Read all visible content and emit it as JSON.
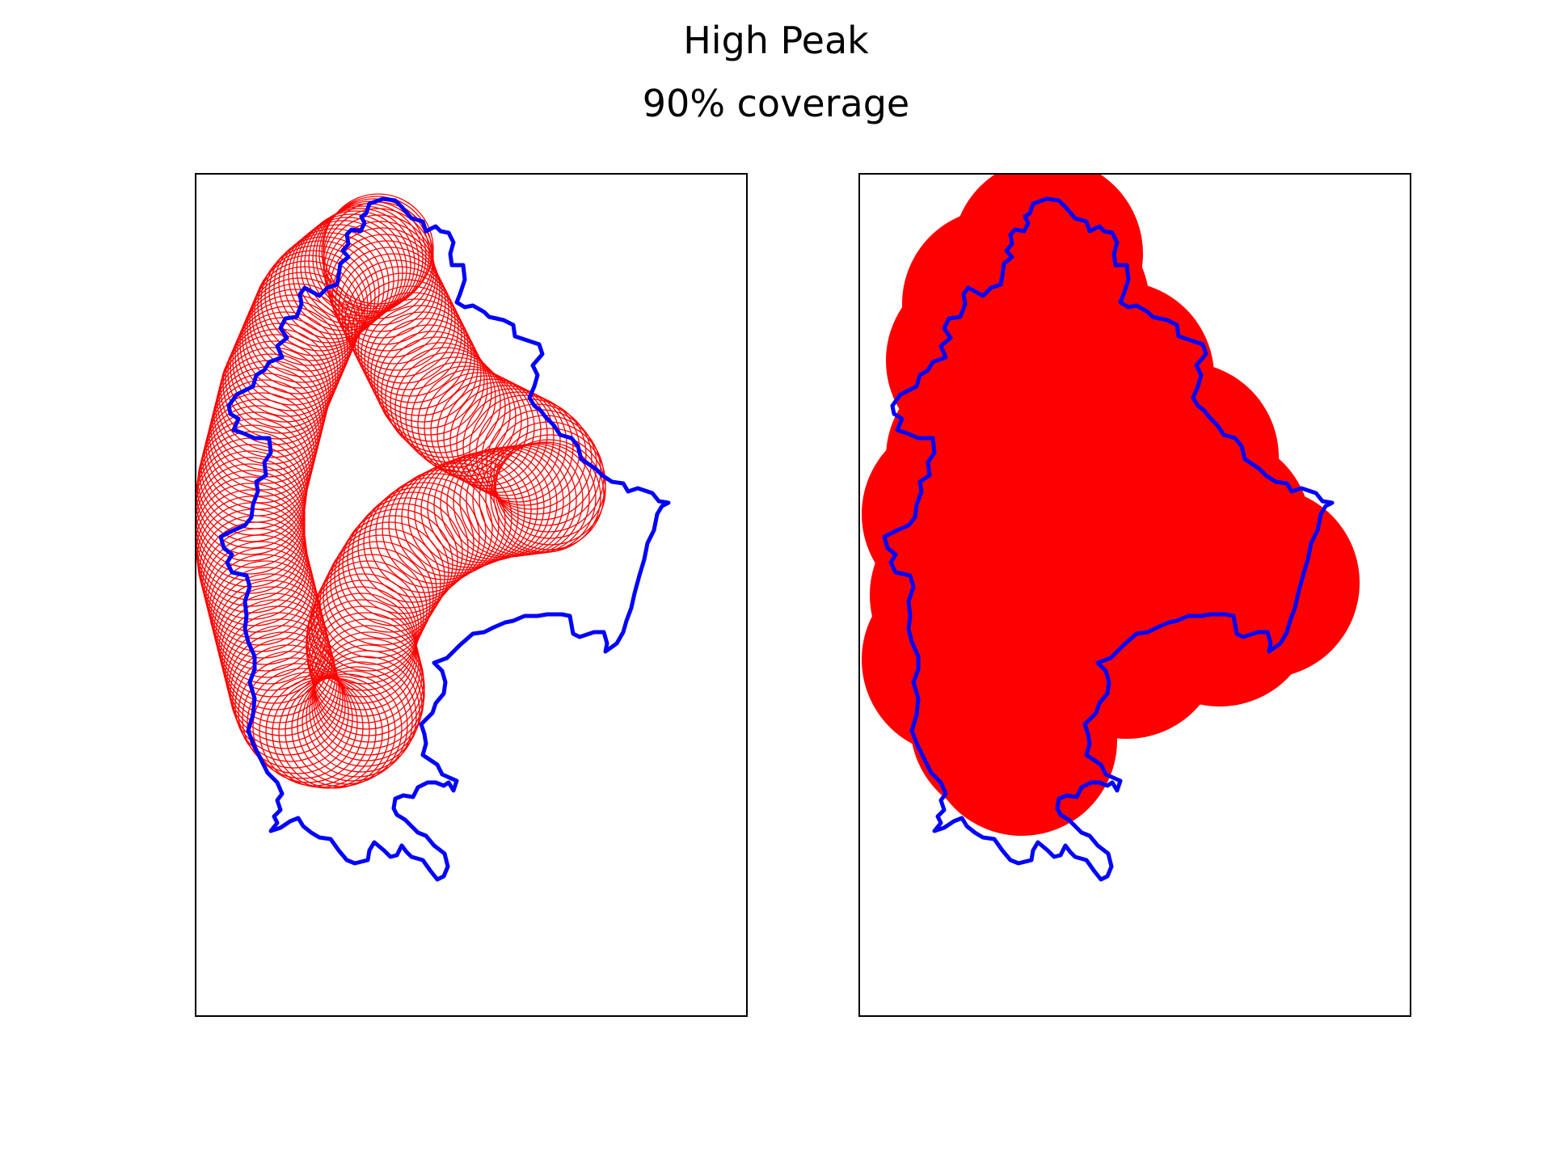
{
  "figure": {
    "title": "High Peak",
    "subtitle": "90% coverage"
  },
  "colors": {
    "boundary": "#0000ff",
    "circles": "#ff0000",
    "frame": "#000000"
  },
  "panels": [
    {
      "style": "outline-circles"
    },
    {
      "style": "filled-union"
    }
  ]
}
